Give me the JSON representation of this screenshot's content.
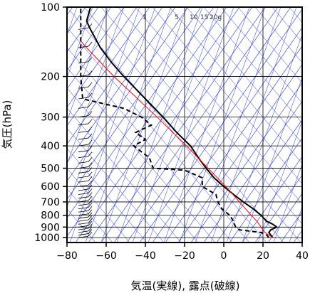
{
  "chart_data": {
    "type": "line",
    "chart_kind": "skew-T log-P diagram",
    "xlabel": "気温(実線), 露点(破線)",
    "ylabel": "気圧(hPa)",
    "y_scale": "log",
    "y_reversed": true,
    "xlim": [
      -80,
      40
    ],
    "ylim": [
      1050,
      100
    ],
    "x_ticks": [
      -80,
      -60,
      -40,
      -20,
      0,
      20,
      40
    ],
    "y_ticks": [
      100,
      200,
      300,
      400,
      500,
      600,
      700,
      800,
      900,
      1000
    ],
    "mixing_ratio_labels": [
      "1",
      "5",
      "10",
      "15",
      "20g"
    ],
    "series": [
      {
        "line_style": "solid",
        "color": "#000000",
        "points": [
          {
            "p": 1000,
            "t": 25
          },
          {
            "p": 975,
            "t": 24
          },
          {
            "p": 950,
            "t": 23
          },
          {
            "p": 925,
            "t": 24
          },
          {
            "p": 900,
            "t": 27
          },
          {
            "p": 875,
            "t": 25
          },
          {
            "p": 850,
            "t": 22
          },
          {
            "p": 800,
            "t": 19
          },
          {
            "p": 750,
            "t": 15
          },
          {
            "p": 700,
            "t": 10
          },
          {
            "p": 650,
            "t": 5
          },
          {
            "p": 600,
            "t": 0
          },
          {
            "p": 550,
            "t": -5
          },
          {
            "p": 500,
            "t": -9
          },
          {
            "p": 450,
            "t": -13
          },
          {
            "p": 400,
            "t": -17
          },
          {
            "p": 350,
            "t": -24
          },
          {
            "p": 300,
            "t": -31
          },
          {
            "p": 250,
            "t": -40
          },
          {
            "p": 200,
            "t": -51
          },
          {
            "p": 175,
            "t": -57
          },
          {
            "p": 150,
            "t": -63
          },
          {
            "p": 125,
            "t": -68
          },
          {
            "p": 115,
            "t": -70
          },
          {
            "p": 100,
            "t": -68
          }
        ]
      },
      {
        "line_style": "dashed",
        "color": "#000000",
        "points": [
          {
            "p": 1000,
            "t": 23
          },
          {
            "p": 975,
            "t": 22
          },
          {
            "p": 950,
            "t": 19
          },
          {
            "p": 925,
            "t": 8
          },
          {
            "p": 900,
            "t": 6
          },
          {
            "p": 850,
            "t": 5
          },
          {
            "p": 800,
            "t": 3
          },
          {
            "p": 750,
            "t": -1
          },
          {
            "p": 700,
            "t": -3
          },
          {
            "p": 650,
            "t": -4
          },
          {
            "p": 600,
            "t": -11
          },
          {
            "p": 550,
            "t": -11
          },
          {
            "p": 510,
            "t": -20
          },
          {
            "p": 500,
            "t": -36
          },
          {
            "p": 450,
            "t": -38
          },
          {
            "p": 400,
            "t": -46
          },
          {
            "p": 375,
            "t": -40
          },
          {
            "p": 350,
            "t": -45
          },
          {
            "p": 325,
            "t": -37
          },
          {
            "p": 300,
            "t": -42
          },
          {
            "p": 275,
            "t": -51
          },
          {
            "p": 250,
            "t": -72
          },
          {
            "p": 200,
            "t": -73
          },
          {
            "p": 150,
            "t": -73
          },
          {
            "p": 100,
            "t": -73
          }
        ]
      },
      {
        "line_style": "solid",
        "color": "#ff0000",
        "points": [
          {
            "p": 1000,
            "t": 25
          },
          {
            "p": 950,
            "t": 21
          },
          {
            "p": 900,
            "t": 19
          },
          {
            "p": 850,
            "t": 17
          },
          {
            "p": 800,
            "t": 14
          },
          {
            "p": 700,
            "t": 8
          },
          {
            "p": 600,
            "t": 1
          },
          {
            "p": 500,
            "t": -8
          },
          {
            "p": 400,
            "t": -19
          },
          {
            "p": 300,
            "t": -34
          },
          {
            "p": 200,
            "t": -56
          },
          {
            "p": 150,
            "t": -70
          },
          {
            "p": 140,
            "t": -73
          }
        ]
      }
    ],
    "colors": {
      "background_lines": "#2233dd",
      "grid": "#000000",
      "temperature": "#000000",
      "dewpoint": "#000000",
      "parcel": "#ff0000"
    }
  }
}
